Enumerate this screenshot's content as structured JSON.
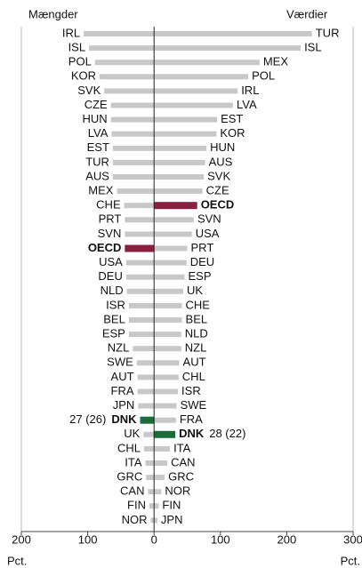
{
  "chart_data": {
    "type": "butterfly",
    "xlim": [
      -200,
      300
    ],
    "xticks": [
      {
        "value": -200,
        "label": "200"
      },
      {
        "value": -100,
        "label": "100"
      },
      0,
      100,
      200,
      300
    ],
    "x_unit_labels": [
      "Pct.",
      "Pct."
    ],
    "series": [
      {
        "name": "Mængder",
        "color": "#c8c8c8",
        "categories": [
          "IRL",
          "ISL",
          "POL",
          "KOR",
          "SVK",
          "CZE",
          "HUN",
          "LVA",
          "EST",
          "TUR",
          "AUS",
          "MEX",
          "CHE",
          "PRT",
          "SVN",
          "OECD",
          "USA",
          "DEU",
          "NLD",
          "ISR",
          "BEL",
          "ESP",
          "NZL",
          "SWE",
          "AUT",
          "FRA",
          "JPN",
          "DNK",
          "UK",
          "CHL",
          "ITA",
          "GRC",
          "CAN",
          "FIN",
          "NOR"
        ],
        "values": [
          -106,
          -98,
          -89,
          -82,
          -75,
          -65,
          -65,
          -64,
          -62,
          -62,
          -62,
          -56,
          -45,
          -44,
          -44,
          -44,
          -42,
          -42,
          -41,
          -38,
          -38,
          -38,
          -32,
          -26,
          -25,
          -25,
          -24,
          -21,
          -16,
          -15,
          -13,
          -12,
          -9,
          -7,
          -5
        ],
        "colors": [
          "#c8c8c8",
          "#c8c8c8",
          "#c8c8c8",
          "#c8c8c8",
          "#c8c8c8",
          "#c8c8c8",
          "#c8c8c8",
          "#c8c8c8",
          "#c8c8c8",
          "#c8c8c8",
          "#c8c8c8",
          "#c8c8c8",
          "#c8c8c8",
          "#c8c8c8",
          "#c8c8c8",
          "#8b1f3f",
          "#c8c8c8",
          "#c8c8c8",
          "#c8c8c8",
          "#c8c8c8",
          "#c8c8c8",
          "#c8c8c8",
          "#c8c8c8",
          "#c8c8c8",
          "#c8c8c8",
          "#c8c8c8",
          "#c8c8c8",
          "#1b6b3b",
          "#c8c8c8",
          "#c8c8c8",
          "#c8c8c8",
          "#c8c8c8",
          "#c8c8c8",
          "#c8c8c8",
          "#c8c8c8"
        ],
        "annotation": "27 (26)"
      },
      {
        "name": "Værdier",
        "color": "#c8c8c8",
        "categories": [
          "TUR",
          "ISL",
          "MEX",
          "POL",
          "IRL",
          "LVA",
          "EST",
          "KOR",
          "HUN",
          "AUS",
          "SVK",
          "CZE",
          "OECD",
          "SVN",
          "USA",
          "PRT",
          "DEU",
          "ESP",
          "UK",
          "CHE",
          "BEL",
          "NLD",
          "NZL",
          "AUT",
          "CHL",
          "ISR",
          "SWE",
          "FRA",
          "DNK",
          "ITA",
          "CAN",
          "GRC",
          "NOR",
          "FIN",
          "JPN"
        ],
        "values": [
          238,
          221,
          159,
          142,
          126,
          119,
          95,
          94,
          79,
          77,
          75,
          73,
          65,
          60,
          57,
          50,
          49,
          46,
          44,
          42,
          42,
          41,
          41,
          38,
          37,
          36,
          34,
          33,
          32,
          24,
          20,
          16,
          11,
          7,
          5
        ],
        "colors": [
          "#c8c8c8",
          "#c8c8c8",
          "#c8c8c8",
          "#c8c8c8",
          "#c8c8c8",
          "#c8c8c8",
          "#c8c8c8",
          "#c8c8c8",
          "#c8c8c8",
          "#c8c8c8",
          "#c8c8c8",
          "#c8c8c8",
          "#8b1f3f",
          "#c8c8c8",
          "#c8c8c8",
          "#c8c8c8",
          "#c8c8c8",
          "#c8c8c8",
          "#c8c8c8",
          "#c8c8c8",
          "#c8c8c8",
          "#c8c8c8",
          "#c8c8c8",
          "#c8c8c8",
          "#c8c8c8",
          "#c8c8c8",
          "#c8c8c8",
          "#c8c8c8",
          "#1b6b3b",
          "#c8c8c8",
          "#c8c8c8",
          "#c8c8c8",
          "#c8c8c8",
          "#c8c8c8",
          "#c8c8c8"
        ],
        "annotation": "28 (22)"
      }
    ]
  }
}
